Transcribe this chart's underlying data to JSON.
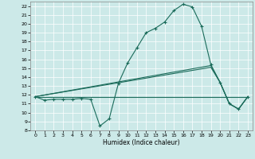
{
  "xlabel": "Humidex (Indice chaleur)",
  "x_ticks": [
    0,
    1,
    2,
    3,
    4,
    5,
    6,
    7,
    8,
    9,
    10,
    11,
    12,
    13,
    14,
    15,
    16,
    17,
    18,
    19,
    20,
    21,
    22,
    23
  ],
  "ylim": [
    8,
    22.5
  ],
  "xlim": [
    -0.5,
    23.5
  ],
  "yticks": [
    8,
    9,
    10,
    11,
    12,
    13,
    14,
    15,
    16,
    17,
    18,
    19,
    20,
    21,
    22
  ],
  "bg_color": "#cce9e8",
  "line_color": "#1a6b5a",
  "grid_color": "#ffffff",
  "lines": [
    {
      "x": [
        0,
        1,
        2,
        3,
        4,
        5,
        6,
        7,
        8,
        9,
        10,
        11,
        12,
        13,
        14,
        15,
        16,
        17,
        18,
        19,
        20,
        21,
        22,
        23
      ],
      "y": [
        11.8,
        11.4,
        11.5,
        11.5,
        11.5,
        11.6,
        11.5,
        8.5,
        9.3,
        13.3,
        15.6,
        17.3,
        19.0,
        19.5,
        20.2,
        21.5,
        22.2,
        21.9,
        19.7,
        15.4,
        13.4,
        11.0,
        10.4,
        11.8
      ],
      "marker": "+"
    },
    {
      "x": [
        0,
        23
      ],
      "y": [
        11.8,
        11.8
      ],
      "marker": null
    },
    {
      "x": [
        0,
        19,
        20,
        21,
        22,
        23
      ],
      "y": [
        11.8,
        15.1,
        13.4,
        11.0,
        10.4,
        11.8
      ],
      "marker": null
    },
    {
      "x": [
        0,
        19,
        20,
        21,
        22,
        23
      ],
      "y": [
        11.8,
        15.3,
        13.4,
        11.0,
        10.4,
        11.8
      ],
      "marker": null
    }
  ]
}
